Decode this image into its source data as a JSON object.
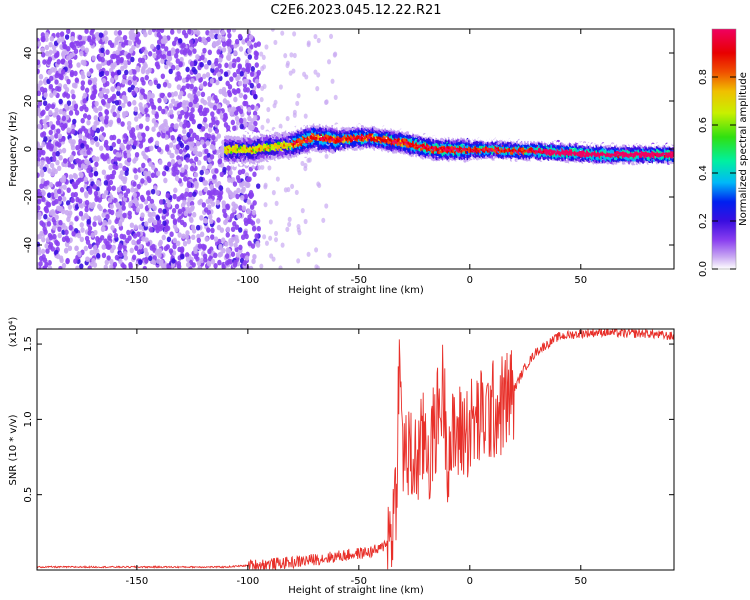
{
  "title": "C2E6.2023.045.12.22.R21",
  "chart_data": [
    {
      "type": "heatmap",
      "xlabel": "Height of straight line (km)",
      "ylabel": "Frequency (Hz)",
      "xlim": [
        -195,
        92
      ],
      "ylim": [
        -50,
        50
      ],
      "xticks": [
        -150,
        -100,
        -50,
        0,
        50
      ],
      "yticks": [
        -40,
        -20,
        0,
        20,
        40
      ],
      "colorbar": {
        "label": "Normalized spectral amplitude",
        "range": [
          0,
          1
        ],
        "ticks": [
          0.0,
          0.2,
          0.4,
          0.6,
          0.8
        ],
        "colors": [
          "#ffffff",
          "#c9a9f2",
          "#8a3ff0",
          "#3a0ee0",
          "#0020f0",
          "#00b8f8",
          "#00f0a0",
          "#30e010",
          "#c8f000",
          "#f0c000",
          "#f05000",
          "#e80000",
          "#f00060"
        ]
      },
      "ridge": {
        "x": [
          -97,
          -90,
          -80,
          -70,
          -60,
          -50,
          -45,
          -40,
          -35,
          -30,
          -25,
          -20,
          -15,
          -10,
          -5,
          0,
          10,
          20,
          30,
          40,
          50,
          60,
          70,
          80,
          92
        ],
        "freq": [
          0,
          1,
          2,
          5,
          4,
          5,
          5,
          4.5,
          3.5,
          3,
          2,
          1,
          0,
          0,
          0,
          0,
          0,
          -0.5,
          -0.5,
          -1,
          -1.5,
          -2,
          -2,
          -2,
          -2
        ]
      }
    },
    {
      "type": "line",
      "xlabel": "Height of straight line (km)",
      "ylabel": "SNR (10 * v/v)",
      "yscale_label": "(x10⁴)",
      "xlim": [
        -195,
        92
      ],
      "ylim": [
        0,
        1.6
      ],
      "xticks": [
        -150,
        -100,
        -50,
        0,
        50
      ],
      "yticks": [
        0.5,
        1.0,
        1.5
      ],
      "ytick_labels": [
        "0.5",
        "1.0",
        "1.5"
      ],
      "color": "#e8302a",
      "series": [
        {
          "x": [
            -195,
            -160,
            -130,
            -110,
            -100,
            -90,
            -80,
            -70,
            -60,
            -50,
            -45,
            -40,
            -37,
            -35,
            -33,
            -32,
            -30,
            -28,
            -25,
            -22,
            -20,
            -18,
            -15,
            -12,
            -10,
            -5,
            0,
            5,
            10,
            15,
            20,
            25,
            30,
            35,
            40,
            50,
            60,
            70,
            80,
            92
          ],
          "values": [
            0.02,
            0.02,
            0.02,
            0.02,
            0.03,
            0.04,
            0.05,
            0.07,
            0.09,
            0.11,
            0.12,
            0.14,
            0.2,
            0.3,
            0.55,
            1.35,
            0.8,
            0.75,
            0.7,
            0.8,
            0.9,
            0.75,
            1.0,
            1.2,
            0.8,
            0.9,
            0.95,
            1.0,
            1.05,
            1.1,
            1.2,
            1.35,
            1.45,
            1.5,
            1.55,
            1.57,
            1.58,
            1.57,
            1.57,
            1.55
          ]
        }
      ]
    }
  ]
}
